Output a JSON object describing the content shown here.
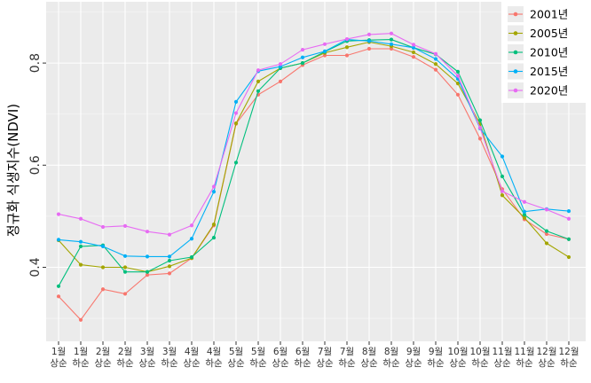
{
  "chart_data": {
    "type": "line",
    "ylabel": "정규화 식생지수(NDVI)",
    "xlabel": "",
    "ylim": [
      0.255,
      0.92
    ],
    "yticks": [
      0.4,
      0.6,
      0.8
    ],
    "ytick_labels": [
      "0.4",
      "0.6",
      "0.8"
    ],
    "grid": true,
    "legend_position": "top-right",
    "categories": [
      {
        "month": "1월",
        "period": "상순"
      },
      {
        "month": "1월",
        "period": "하순"
      },
      {
        "month": "2월",
        "period": "상순"
      },
      {
        "month": "2월",
        "period": "하순"
      },
      {
        "month": "3월",
        "period": "상순"
      },
      {
        "month": "3월",
        "period": "하순"
      },
      {
        "month": "4월",
        "period": "상순"
      },
      {
        "month": "4월",
        "period": "하순"
      },
      {
        "month": "5월",
        "period": "상순"
      },
      {
        "month": "5월",
        "period": "하순"
      },
      {
        "month": "6월",
        "period": "상순"
      },
      {
        "month": "6월",
        "period": "하순"
      },
      {
        "month": "7월",
        "period": "상순"
      },
      {
        "month": "7월",
        "period": "하순"
      },
      {
        "month": "8월",
        "period": "상순"
      },
      {
        "month": "8월",
        "period": "하순"
      },
      {
        "month": "9월",
        "period": "상순"
      },
      {
        "month": "9월",
        "period": "하순"
      },
      {
        "month": "10월",
        "period": "상순"
      },
      {
        "month": "10월",
        "period": "하순"
      },
      {
        "month": "11월",
        "period": "상순"
      },
      {
        "month": "11월",
        "period": "하순"
      },
      {
        "month": "12월",
        "period": "상순"
      },
      {
        "month": "12월",
        "period": "하순"
      }
    ],
    "series": [
      {
        "name": "2001년",
        "color": "#F8766D",
        "values": [
          0.343,
          0.297,
          0.357,
          0.348,
          0.385,
          0.388,
          0.418,
          0.482,
          0.681,
          0.738,
          0.764,
          0.796,
          0.815,
          0.815,
          0.828,
          0.828,
          0.812,
          0.787,
          0.738,
          0.652,
          0.553,
          0.494,
          0.465,
          0.455
        ]
      },
      {
        "name": "2005년",
        "color": "#A3A500",
        "values": [
          0.453,
          0.405,
          0.4,
          0.4,
          0.391,
          0.402,
          0.418,
          0.484,
          0.682,
          0.764,
          0.79,
          0.8,
          0.82,
          0.831,
          0.841,
          0.833,
          0.821,
          0.798,
          0.76,
          0.681,
          0.541,
          0.497,
          0.447,
          0.42
        ]
      },
      {
        "name": "2010년",
        "color": "#00BF7D",
        "values": [
          0.363,
          0.441,
          0.443,
          0.391,
          0.391,
          0.413,
          0.42,
          0.458,
          0.605,
          0.745,
          0.79,
          0.8,
          0.822,
          0.843,
          0.845,
          0.846,
          0.83,
          0.817,
          0.783,
          0.688,
          0.578,
          0.503,
          0.471,
          0.455
        ]
      },
      {
        "name": "2015년",
        "color": "#00B0F6",
        "values": [
          0.454,
          0.45,
          0.441,
          0.422,
          0.421,
          0.421,
          0.456,
          0.548,
          0.724,
          0.784,
          0.793,
          0.811,
          0.823,
          0.846,
          0.843,
          0.837,
          0.83,
          0.808,
          0.769,
          0.672,
          0.617,
          0.509,
          0.514,
          0.51
        ]
      },
      {
        "name": "2020년",
        "color": "#E76BF3",
        "values": [
          0.504,
          0.495,
          0.479,
          0.481,
          0.47,
          0.464,
          0.482,
          0.558,
          0.702,
          0.786,
          0.798,
          0.826,
          0.837,
          0.847,
          0.856,
          0.858,
          0.836,
          0.818,
          0.775,
          0.673,
          0.549,
          0.528,
          0.513,
          0.495
        ]
      }
    ]
  }
}
